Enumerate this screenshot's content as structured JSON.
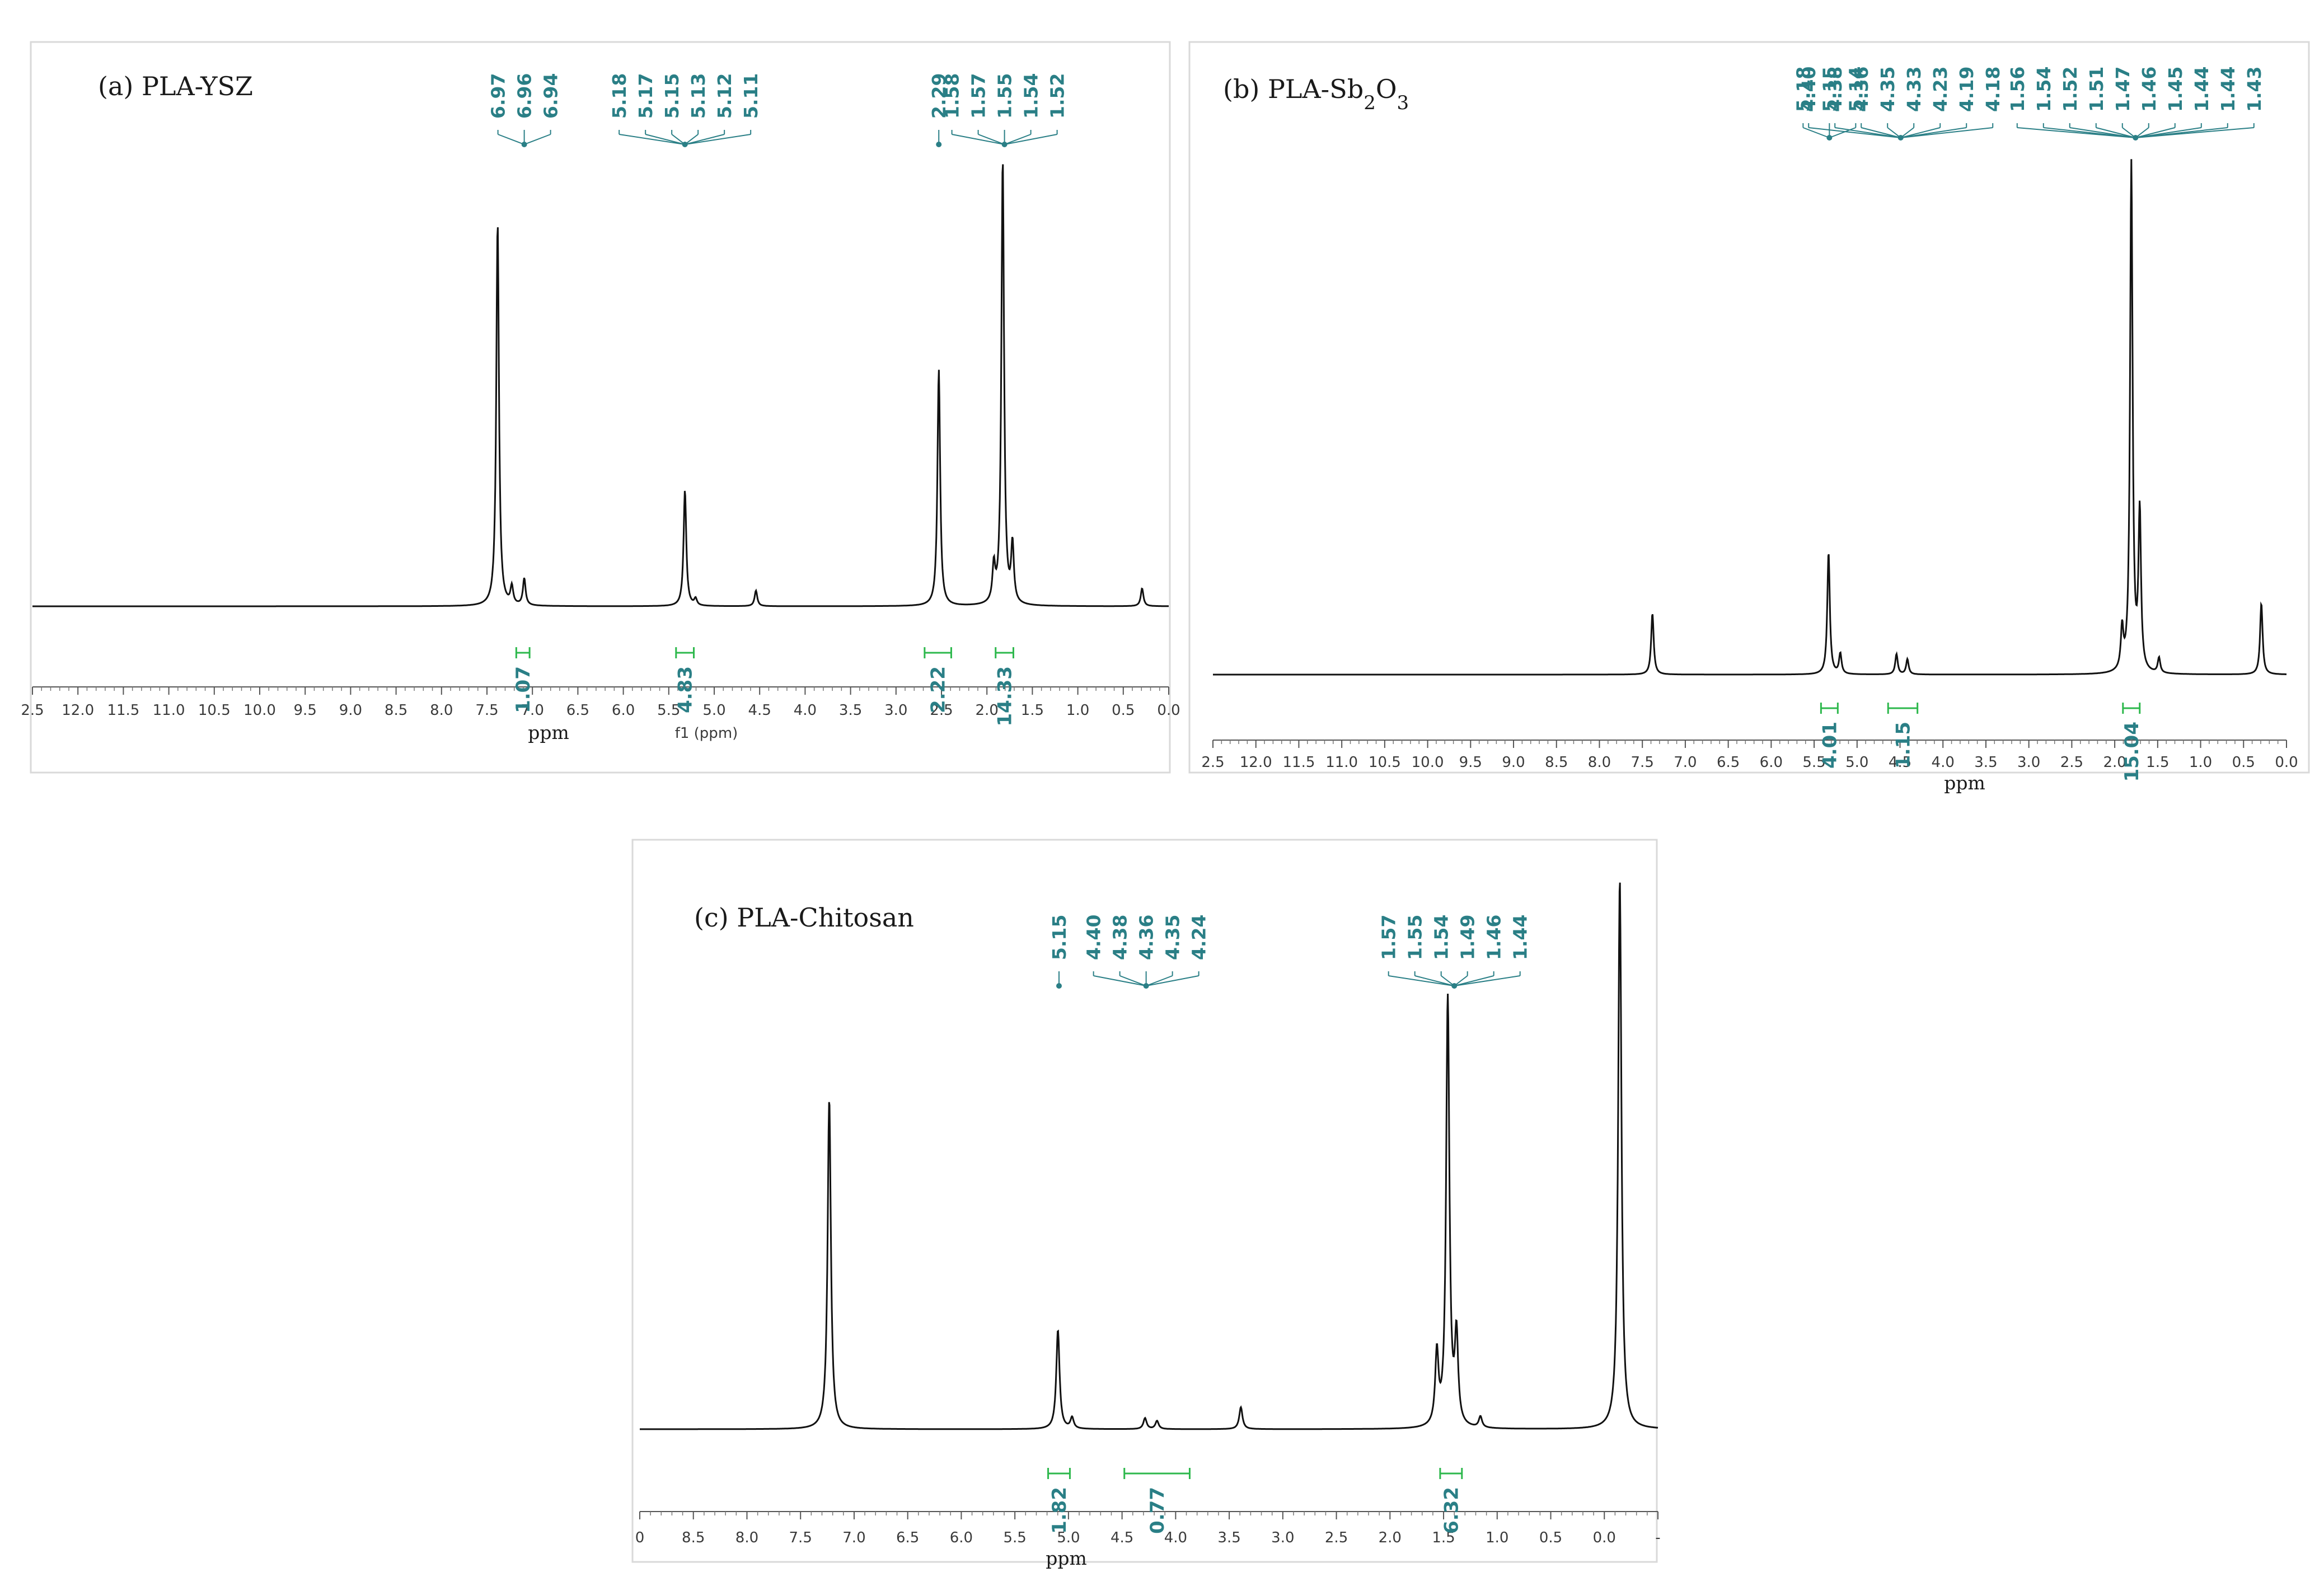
{
  "colors": {
    "spectrum": "#111111",
    "peak_label": "#2a7f86",
    "integral": "#2db84c",
    "frame": "#d9d9d9"
  },
  "chart_data": [
    {
      "type": "line",
      "title": "(a) PLA-YSZ",
      "xlabel": "ppm",
      "xlabel2": "f1 (ppm)",
      "xlim": [
        12.5,
        -0.3
      ],
      "x_reversed": true,
      "ticks": [
        "2.5",
        "12.0",
        "11.5",
        "11.0",
        "10.5",
        "10.0",
        "9.5",
        "9.0",
        "8.5",
        "8.0",
        "7.5",
        "7.0",
        "6.5",
        "6.0",
        "5.5",
        "5.0",
        "4.5",
        "4.0",
        "3.5",
        "3.0",
        "2.5",
        "2.0",
        "1.5",
        "1.0",
        "0.5",
        "0.0"
      ],
      "peaks": [
        {
          "x": 7.26,
          "y": 0.86
        },
        {
          "x": 7.1,
          "y": 0.04
        },
        {
          "x": 6.96,
          "y": 0.06
        },
        {
          "x": 5.15,
          "y": 0.26
        },
        {
          "x": 5.03,
          "y": 0.015
        },
        {
          "x": 4.35,
          "y": 0.035
        },
        {
          "x": 2.29,
          "y": 0.53
        },
        {
          "x": 1.67,
          "y": 0.08
        },
        {
          "x": 1.57,
          "y": 1.0
        },
        {
          "x": 1.46,
          "y": 0.13
        },
        {
          "x": 0.0,
          "y": 0.04
        }
      ],
      "peak_groups": [
        {
          "labels": [
            "6.97",
            "6.96",
            "6.94"
          ],
          "anchor": 6.96
        },
        {
          "labels": [
            "5.18",
            "5.17",
            "5.15",
            "5.13",
            "5.12",
            "5.11"
          ],
          "anchor": 5.15
        },
        {
          "labels": [
            "2.29"
          ],
          "anchor": 2.29
        },
        {
          "labels": [
            "1.58",
            "1.57",
            "1.55",
            "1.54",
            "1.52"
          ],
          "anchor": 1.55
        }
      ],
      "integrals": [
        {
          "value": "1.07",
          "from": 7.05,
          "to": 6.9
        },
        {
          "value": "4.83",
          "from": 5.25,
          "to": 5.05
        },
        {
          "value": "2.22",
          "from": 2.45,
          "to": 2.15
        },
        {
          "value": "14.33",
          "from": 1.65,
          "to": 1.45
        }
      ]
    },
    {
      "type": "line",
      "title": "(b) PLA-Sb",
      "title_sub": [
        "2",
        "3"
      ],
      "title_mid": "O",
      "xlabel": "ppm",
      "xlim": [
        12.5,
        -0.3
      ],
      "x_reversed": true,
      "ticks": [
        "2.5",
        "12.0",
        "11.5",
        "11.0",
        "10.5",
        "10.0",
        "9.5",
        "9.0",
        "8.5",
        "8.0",
        "7.5",
        "7.0",
        "6.5",
        "6.0",
        "5.5",
        "5.0",
        "4.5",
        "4.0",
        "3.5",
        "3.0",
        "2.5",
        "2.0",
        "1.5",
        "1.0",
        "0.5",
        "0.0"
      ],
      "peaks": [
        {
          "x": 7.26,
          "y": 0.12
        },
        {
          "x": 5.16,
          "y": 0.24
        },
        {
          "x": 5.02,
          "y": 0.04
        },
        {
          "x": 4.35,
          "y": 0.04
        },
        {
          "x": 4.22,
          "y": 0.03
        },
        {
          "x": 1.66,
          "y": 0.08
        },
        {
          "x": 1.55,
          "y": 1.0
        },
        {
          "x": 1.45,
          "y": 0.31
        },
        {
          "x": 1.22,
          "y": 0.03
        },
        {
          "x": 0.0,
          "y": 0.14
        }
      ],
      "peak_groups": [
        {
          "labels": [
            "5.18",
            "5.15",
            "5.14"
          ],
          "anchor": 5.15
        },
        {
          "labels": [
            "4.40",
            "4.38",
            "4.36",
            "4.35",
            "4.33",
            "4.23",
            "4.19",
            "4.18"
          ],
          "anchor": 4.3
        },
        {
          "labels": [
            "1.56",
            "1.54",
            "1.52",
            "1.51",
            "1.47",
            "1.46",
            "1.45",
            "1.44",
            "1.44",
            "1.43"
          ],
          "anchor": 1.5
        }
      ],
      "integrals": [
        {
          "value": "4.01",
          "from": 5.25,
          "to": 5.05
        },
        {
          "value": "1.15",
          "from": 4.45,
          "to": 4.1
        },
        {
          "value": "15.04",
          "from": 1.65,
          "to": 1.45
        }
      ]
    },
    {
      "type": "line",
      "title": "(c) PLA-Chitosan",
      "xlabel": "ppm",
      "xlim": [
        9.0,
        -0.35
      ],
      "x_reversed": true,
      "ticks": [
        "0",
        "8.5",
        "8.0",
        "7.5",
        "7.0",
        "6.5",
        "6.0",
        "5.5",
        "5.0",
        "4.5",
        "4.0",
        "3.5",
        "3.0",
        "2.5",
        "2.0",
        "1.5",
        "1.0",
        "0.5",
        "0.0",
        "-"
      ],
      "peaks": [
        {
          "x": 7.26,
          "y": 0.6
        },
        {
          "x": 5.16,
          "y": 0.18
        },
        {
          "x": 5.03,
          "y": 0.02
        },
        {
          "x": 4.36,
          "y": 0.02
        },
        {
          "x": 4.25,
          "y": 0.015
        },
        {
          "x": 3.48,
          "y": 0.04
        },
        {
          "x": 1.68,
          "y": 0.13
        },
        {
          "x": 1.58,
          "y": 0.78
        },
        {
          "x": 1.5,
          "y": 0.16
        },
        {
          "x": 1.28,
          "y": 0.02
        },
        {
          "x": 0.0,
          "y": 1.0
        }
      ],
      "peak_groups": [
        {
          "labels": [
            "5.15"
          ],
          "anchor": 5.15
        },
        {
          "labels": [
            "4.40",
            "4.38",
            "4.36",
            "4.35",
            "4.24"
          ],
          "anchor": 4.35
        },
        {
          "labels": [
            "1.57",
            "1.55",
            "1.54",
            "1.49",
            "1.46",
            "1.44"
          ],
          "anchor": 1.52
        }
      ],
      "integrals": [
        {
          "value": "1.82",
          "from": 5.25,
          "to": 5.05
        },
        {
          "value": "0.77",
          "from": 4.55,
          "to": 3.95
        },
        {
          "value": "6.32",
          "from": 1.65,
          "to": 1.45
        }
      ]
    }
  ]
}
